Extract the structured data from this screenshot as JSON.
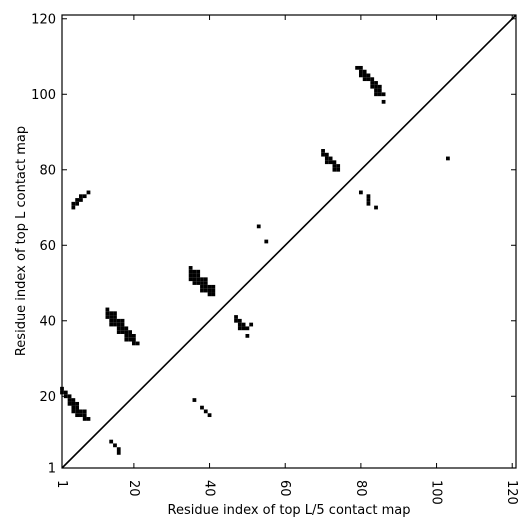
{
  "chart_data": {
    "type": "scatter",
    "title": "",
    "xlabel": "Residue index of top L/5 contact map",
    "ylabel": "Residue index of top L contact map",
    "xlim": [
      1,
      121
    ],
    "ylim": [
      1,
      121
    ],
    "x_ticks": [
      1,
      20,
      40,
      60,
      80,
      100,
      120
    ],
    "y_ticks": [
      1,
      20,
      40,
      60,
      80,
      100,
      120
    ],
    "x_tick_rotation": 90,
    "grid": false,
    "diagonal_line": true,
    "marker_color": "#000000",
    "upper_triangle_points": [
      [
        4,
        70
      ],
      [
        4,
        71
      ],
      [
        5,
        71
      ],
      [
        5,
        72
      ],
      [
        6,
        72
      ],
      [
        6,
        73
      ],
      [
        7,
        73
      ],
      [
        8,
        74
      ],
      [
        13,
        41
      ],
      [
        13,
        42
      ],
      [
        13,
        43
      ],
      [
        14,
        39
      ],
      [
        14,
        40
      ],
      [
        14,
        41
      ],
      [
        14,
        42
      ],
      [
        15,
        39
      ],
      [
        15,
        40
      ],
      [
        15,
        41
      ],
      [
        15,
        42
      ],
      [
        16,
        37
      ],
      [
        16,
        38
      ],
      [
        16,
        39
      ],
      [
        16,
        40
      ],
      [
        17,
        37
      ],
      [
        17,
        38
      ],
      [
        17,
        39
      ],
      [
        17,
        40
      ],
      [
        18,
        35
      ],
      [
        18,
        36
      ],
      [
        18,
        37
      ],
      [
        18,
        38
      ],
      [
        19,
        35
      ],
      [
        19,
        36
      ],
      [
        19,
        37
      ],
      [
        20,
        34
      ],
      [
        20,
        35
      ],
      [
        20,
        36
      ],
      [
        21,
        34
      ],
      [
        35,
        51
      ],
      [
        35,
        52
      ],
      [
        35,
        53
      ],
      [
        35,
        54
      ],
      [
        36,
        50
      ],
      [
        36,
        51
      ],
      [
        36,
        52
      ],
      [
        36,
        53
      ],
      [
        37,
        50
      ],
      [
        37,
        51
      ],
      [
        37,
        52
      ],
      [
        37,
        53
      ],
      [
        38,
        48
      ],
      [
        38,
        49
      ],
      [
        38,
        50
      ],
      [
        38,
        51
      ],
      [
        39,
        48
      ],
      [
        39,
        49
      ],
      [
        39,
        50
      ],
      [
        39,
        51
      ],
      [
        40,
        47
      ],
      [
        40,
        48
      ],
      [
        40,
        49
      ],
      [
        41,
        47
      ],
      [
        41,
        48
      ],
      [
        41,
        49
      ],
      [
        47,
        40
      ],
      [
        47,
        41
      ],
      [
        48,
        38
      ],
      [
        48,
        39
      ],
      [
        48,
        40
      ],
      [
        49,
        38
      ],
      [
        49,
        39
      ],
      [
        50,
        36
      ],
      [
        50,
        38
      ],
      [
        51,
        39
      ],
      [
        53,
        65
      ],
      [
        55,
        61
      ],
      [
        70,
        84
      ],
      [
        70,
        85
      ],
      [
        71,
        84
      ],
      [
        71,
        82
      ],
      [
        71,
        83
      ],
      [
        72,
        82
      ],
      [
        72,
        83
      ],
      [
        73,
        80
      ],
      [
        73,
        81
      ],
      [
        73,
        82
      ],
      [
        74,
        80
      ],
      [
        74,
        81
      ],
      [
        79,
        107
      ],
      [
        80,
        105
      ],
      [
        80,
        106
      ],
      [
        80,
        107
      ],
      [
        81,
        104
      ],
      [
        81,
        105
      ],
      [
        81,
        106
      ],
      [
        82,
        104
      ],
      [
        82,
        105
      ],
      [
        83,
        102
      ],
      [
        83,
        103
      ],
      [
        83,
        104
      ],
      [
        84,
        100
      ],
      [
        84,
        101
      ],
      [
        84,
        102
      ],
      [
        84,
        103
      ],
      [
        85,
        100
      ],
      [
        85,
        101
      ],
      [
        85,
        102
      ],
      [
        86,
        100
      ],
      [
        86,
        98
      ],
      [
        103,
        83
      ]
    ],
    "lower_triangle_points": [
      [
        1,
        21
      ],
      [
        1,
        22
      ],
      [
        2,
        20
      ],
      [
        2,
        21
      ],
      [
        3,
        18
      ],
      [
        3,
        19
      ],
      [
        3,
        20
      ],
      [
        4,
        18
      ],
      [
        4,
        19
      ],
      [
        4,
        16
      ],
      [
        4,
        17
      ],
      [
        4,
        18
      ],
      [
        5,
        15
      ],
      [
        5,
        16
      ],
      [
        5,
        17
      ],
      [
        5,
        18
      ],
      [
        6,
        15
      ],
      [
        6,
        16
      ],
      [
        7,
        14
      ],
      [
        7,
        15
      ],
      [
        7,
        16
      ],
      [
        8,
        14
      ],
      [
        14,
        8
      ],
      [
        15,
        7
      ],
      [
        16,
        5
      ],
      [
        16,
        6
      ],
      [
        36,
        19
      ],
      [
        38,
        17
      ],
      [
        39,
        16
      ],
      [
        40,
        15
      ],
      [
        80,
        74
      ],
      [
        82,
        71
      ],
      [
        82,
        72
      ],
      [
        82,
        73
      ],
      [
        84,
        70
      ]
    ]
  }
}
